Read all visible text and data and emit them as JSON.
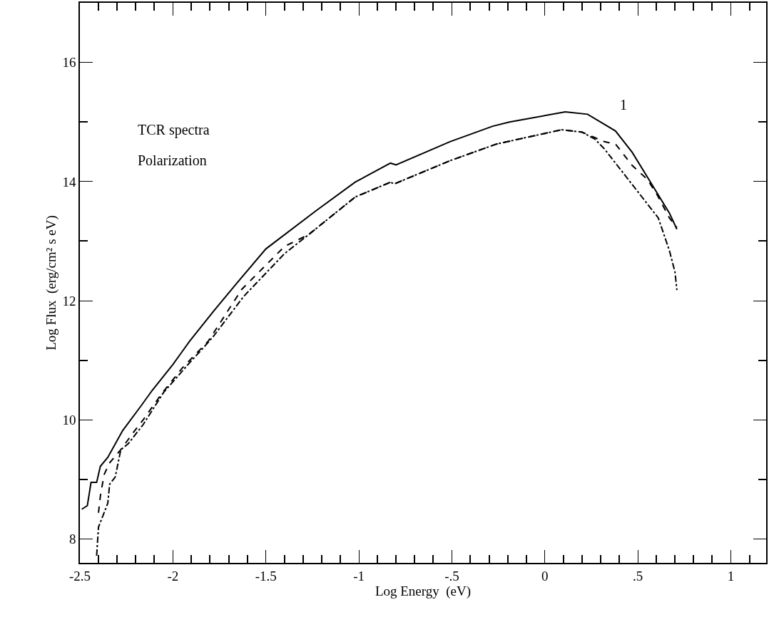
{
  "chart_data": {
    "type": "line",
    "xlabel": "Log Energy  (eV)",
    "ylabel": "Log Flux  (erg/cm² s eV)",
    "xlim": [
      -2.5,
      1.19
    ],
    "ylim": [
      7.6,
      17
    ],
    "xticks": [
      {
        "value": -2.5,
        "label": "-2.5"
      },
      {
        "value": -2.4,
        "label": null
      },
      {
        "value": -2.3,
        "label": null
      },
      {
        "value": -2.2,
        "label": null
      },
      {
        "value": -2.1,
        "label": null
      },
      {
        "value": -2,
        "label": "-2"
      },
      {
        "value": -1.9,
        "label": null
      },
      {
        "value": -1.8,
        "label": null
      },
      {
        "value": -1.7,
        "label": null
      },
      {
        "value": -1.6,
        "label": null
      },
      {
        "value": -1.5,
        "label": "-1.5"
      },
      {
        "value": -1.4,
        "label": null
      },
      {
        "value": -1.3,
        "label": null
      },
      {
        "value": -1.2,
        "label": null
      },
      {
        "value": -1.1,
        "label": null
      },
      {
        "value": -1,
        "label": "-1"
      },
      {
        "value": -0.9,
        "label": null
      },
      {
        "value": -0.8,
        "label": null
      },
      {
        "value": -0.7,
        "label": null
      },
      {
        "value": -0.6,
        "label": null
      },
      {
        "value": -0.5,
        "label": "-.5"
      },
      {
        "value": -0.4,
        "label": null
      },
      {
        "value": -0.3,
        "label": null
      },
      {
        "value": -0.2,
        "label": null
      },
      {
        "value": -0.1,
        "label": null
      },
      {
        "value": 0,
        "label": "0"
      },
      {
        "value": 0.1,
        "label": null
      },
      {
        "value": 0.2,
        "label": null
      },
      {
        "value": 0.3,
        "label": null
      },
      {
        "value": 0.4,
        "label": null
      },
      {
        "value": 0.5,
        "label": ".5"
      },
      {
        "value": 0.6,
        "label": null
      },
      {
        "value": 0.7,
        "label": null
      },
      {
        "value": 0.8,
        "label": null
      },
      {
        "value": 0.9,
        "label": null
      },
      {
        "value": 1,
        "label": "1"
      },
      {
        "value": 1.1,
        "label": null
      }
    ],
    "yticks": [
      8,
      {
        "value": 9,
        "label": null
      },
      10,
      {
        "value": 11,
        "label": null
      },
      12,
      {
        "value": 13,
        "label": null
      },
      14,
      {
        "value": 15,
        "label": null
      },
      16
    ],
    "marker": "none",
    "annotations": [
      "TCR spectra",
      "Polarization",
      "1"
    ],
    "series": [
      {
        "color": "#000000",
        "line_style": "solid",
        "x": [
          -2.49,
          -2.46,
          -2.44,
          -2.41,
          -2.39,
          -2.35,
          -2.27,
          -2.17,
          -2.11,
          -2.0,
          -1.91,
          -1.78,
          -1.66,
          -1.5,
          -1.23,
          -1.02,
          -0.83,
          -0.8,
          -0.51,
          -0.28,
          -0.19,
          0.11,
          0.23,
          0.38,
          0.47,
          0.58,
          0.67,
          0.71
        ],
        "values": [
          8.5,
          8.56,
          8.95,
          8.95,
          9.22,
          9.37,
          9.82,
          10.24,
          10.5,
          10.93,
          11.32,
          11.83,
          12.28,
          12.87,
          13.51,
          13.99,
          14.31,
          14.28,
          14.67,
          14.93,
          15.0,
          15.17,
          15.13,
          14.85,
          14.49,
          13.93,
          13.47,
          13.2
        ]
      },
      {
        "color": "#000000",
        "line_style": "dashed",
        "x": [
          -2.4,
          -2.39,
          -2.37,
          -2.34,
          -2.28,
          -2.21,
          -2.16,
          -2.06,
          -1.95,
          -1.81,
          -1.63,
          -1.4,
          -1.27,
          -1.02,
          -0.83,
          -0.81,
          -0.51,
          -0.26,
          0.09,
          0.2,
          0.32,
          0.38,
          0.47,
          0.55,
          0.6,
          0.67,
          0.71
        ],
        "values": [
          8.44,
          8.72,
          9.08,
          9.28,
          9.5,
          9.8,
          10.0,
          10.44,
          10.87,
          11.32,
          12.19,
          12.91,
          13.11,
          13.74,
          13.99,
          13.96,
          14.35,
          14.63,
          14.87,
          14.83,
          14.67,
          14.63,
          14.27,
          14.04,
          13.8,
          13.39,
          13.23
        ]
      },
      {
        "color": "#000000",
        "line_style": "dashdot",
        "x": [
          -2.41,
          -2.4,
          -2.35,
          -2.34,
          -2.31,
          -2.28,
          -2.24,
          -2.16,
          -2.05,
          -1.91,
          -1.83,
          -1.78,
          -1.62,
          -1.4,
          -1.27,
          -1.02,
          -0.83,
          -0.81,
          -0.51,
          -0.26,
          0.09,
          0.2,
          0.27,
          0.32,
          0.38,
          0.44,
          0.52,
          0.61,
          0.67,
          0.7,
          0.71
        ],
        "values": [
          7.72,
          8.2,
          8.6,
          8.92,
          9.04,
          9.5,
          9.6,
          9.92,
          10.46,
          10.96,
          11.23,
          11.41,
          12.07,
          12.79,
          13.11,
          13.74,
          13.99,
          13.96,
          14.35,
          14.63,
          14.87,
          14.83,
          14.71,
          14.55,
          14.31,
          14.07,
          13.75,
          13.39,
          12.84,
          12.48,
          12.18
        ]
      }
    ]
  }
}
